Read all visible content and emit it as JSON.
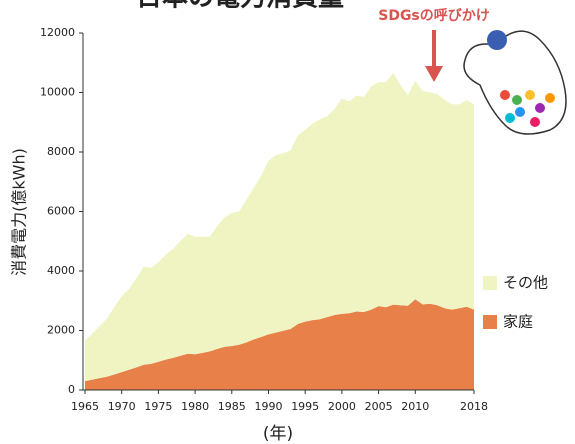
{
  "chart_data": {
    "type": "stacked-area",
    "title": "日本の電力消費量",
    "annotation": "SDGsの呼びかけ",
    "y_label": "消費電力(億kWh)",
    "x_label": "(年)",
    "x": [
      1965,
      1966,
      1967,
      1968,
      1969,
      1970,
      1971,
      1972,
      1973,
      1974,
      1975,
      1976,
      1977,
      1978,
      1979,
      1980,
      1981,
      1982,
      1983,
      1984,
      1985,
      1986,
      1987,
      1988,
      1989,
      1990,
      1991,
      1992,
      1993,
      1994,
      1995,
      1996,
      1997,
      1998,
      1999,
      2000,
      2001,
      2002,
      2003,
      2004,
      2005,
      2006,
      2007,
      2008,
      2009,
      2010,
      2011,
      2012,
      2013,
      2014,
      2015,
      2016,
      2017,
      2018
    ],
    "series": [
      {
        "name": "家庭",
        "color": "#e8804a",
        "values": [
          300,
          350,
          400,
          450,
          520,
          600,
          680,
          760,
          850,
          880,
          950,
          1020,
          1080,
          1150,
          1220,
          1200,
          1250,
          1300,
          1380,
          1450,
          1480,
          1520,
          1600,
          1700,
          1780,
          1870,
          1930,
          1990,
          2050,
          2220,
          2300,
          2350,
          2380,
          2450,
          2520,
          2560,
          2580,
          2640,
          2620,
          2700,
          2820,
          2780,
          2870,
          2850,
          2830,
          3050,
          2880,
          2900,
          2850,
          2750,
          2700,
          2750,
          2800,
          2700
        ]
      },
      {
        "name": "その他",
        "color": "#eff4c2",
        "values": [
          1350,
          1550,
          1750,
          1950,
          2280,
          2550,
          2720,
          2990,
          3300,
          3220,
          3350,
          3530,
          3670,
          3850,
          4030,
          3950,
          3900,
          3850,
          4120,
          4350,
          4470,
          4480,
          4800,
          5100,
          5420,
          5830,
          5970,
          5960,
          6000,
          6330,
          6450,
          6600,
          6720,
          6750,
          6930,
          7240,
          7120,
          7260,
          7230,
          7500,
          7530,
          7570,
          7780,
          7400,
          7070,
          7350,
          7170,
          7100,
          7100,
          7000,
          6900,
          6850,
          6950,
          6900
        ]
      }
    ],
    "xlim": [
      1965,
      2018
    ],
    "xticks": [
      1965,
      1970,
      1975,
      1980,
      1985,
      1990,
      1995,
      2000,
      2005,
      2010,
      2018
    ],
    "ylim": [
      0,
      12000
    ],
    "yticks": [
      0,
      2000,
      4000,
      6000,
      8000,
      10000,
      12000
    ]
  }
}
